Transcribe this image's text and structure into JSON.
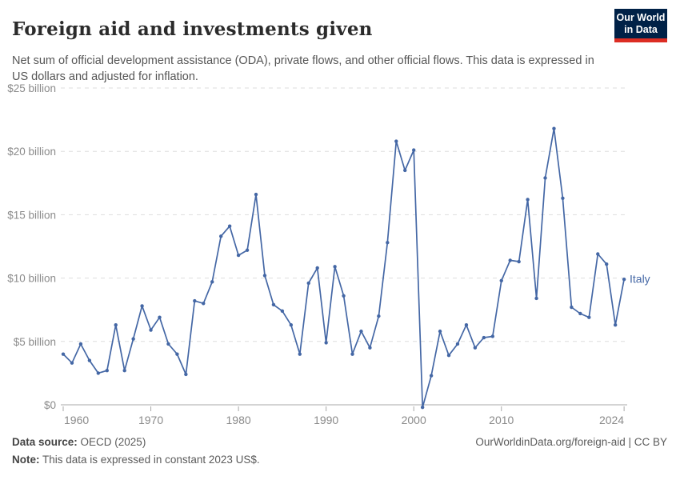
{
  "header": {
    "title": "Foreign aid and investments given",
    "subtitle": "Net sum of official development assistance (ODA), private flows, and other official flows. This data is expressed in US dollars and adjusted for inflation.",
    "logo": {
      "line1": "Our World",
      "line2": "in Data",
      "bg_color": "#002147",
      "accent_color": "#dc2d23"
    }
  },
  "chart_data": {
    "type": "line",
    "title": "Foreign aid and investments given",
    "entity_label": "Italy",
    "unit": "US$ billion, constant 2023 US$",
    "years": [
      1960,
      1961,
      1962,
      1963,
      1964,
      1965,
      1966,
      1967,
      1968,
      1969,
      1970,
      1971,
      1972,
      1973,
      1974,
      1975,
      1976,
      1977,
      1978,
      1979,
      1980,
      1981,
      1982,
      1983,
      1984,
      1985,
      1986,
      1987,
      1988,
      1989,
      1990,
      1991,
      1992,
      1993,
      1994,
      1995,
      1996,
      1997,
      1998,
      1999,
      2000,
      2001,
      2002,
      2003,
      2004,
      2005,
      2006,
      2007,
      2008,
      2009,
      2010,
      2011,
      2012,
      2013,
      2014,
      2015,
      2016,
      2017,
      2018,
      2019,
      2020,
      2021,
      2022,
      2023,
      2024
    ],
    "values": [
      4.0,
      3.3,
      4.8,
      3.5,
      2.5,
      2.7,
      6.3,
      2.7,
      5.2,
      7.8,
      5.9,
      6.9,
      4.8,
      4.0,
      2.4,
      8.2,
      8.0,
      9.7,
      13.3,
      14.1,
      11.8,
      12.2,
      16.6,
      10.2,
      7.9,
      7.4,
      6.3,
      4.0,
      9.6,
      10.8,
      4.9,
      10.9,
      8.6,
      4.0,
      5.8,
      4.5,
      7.0,
      12.8,
      20.8,
      18.5,
      20.1,
      -0.2,
      2.3,
      5.8,
      3.9,
      4.8,
      6.3,
      4.5,
      5.3,
      5.4,
      9.8,
      11.4,
      11.3,
      16.2,
      8.4,
      17.9,
      21.8,
      16.3,
      7.7,
      7.2,
      6.9,
      11.9,
      11.1,
      6.3,
      9.9
    ],
    "xlabel": "",
    "ylabel": "",
    "xlim": [
      1960,
      2024
    ],
    "ylim": [
      0,
      25
    ],
    "ytick_values": [
      0,
      5,
      10,
      15,
      20,
      25
    ],
    "ytick_labels": [
      "$0",
      "$5 billion",
      "$10 billion",
      "$15 billion",
      "$20 billion",
      "$25 billion"
    ],
    "xtick_values": [
      1960,
      1970,
      1980,
      1990,
      2000,
      2010,
      2024
    ],
    "xtick_labels": [
      "1960",
      "1970",
      "1980",
      "1990",
      "2000",
      "2010",
      "2024"
    ],
    "grid": "horizontal-dashed",
    "legend_position": "end-of-line",
    "line_color": "#4467a5",
    "axis_color": "#a8a8a8",
    "grid_color": "#dddddd",
    "tick_label_color": "#8b8b8b"
  },
  "footer": {
    "source_label": "Data source:",
    "source_value": " OECD (2025)",
    "note_label": "Note:",
    "note_value": " This data is expressed in constant 2023 US$.",
    "credit": "OurWorldinData.org/foreign-aid | CC BY"
  }
}
